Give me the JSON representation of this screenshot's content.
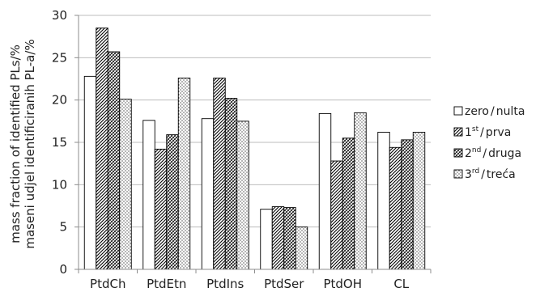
{
  "chart_data": {
    "type": "bar",
    "categories": [
      "PtdCh",
      "PtdEtn",
      "PtdIns",
      "PtdSer",
      "PtdOH",
      "CL"
    ],
    "series": [
      {
        "name_main": "zero",
        "name_sep": "/",
        "name_alt": "nulta",
        "values": [
          22.8,
          17.6,
          17.8,
          7.1,
          18.4,
          16.2
        ]
      },
      {
        "name_main": "1",
        "name_sup": "st",
        "name_sep": "/",
        "name_alt": "prva",
        "values": [
          28.5,
          14.2,
          22.6,
          7.4,
          12.8,
          14.4
        ]
      },
      {
        "name_main": "2",
        "name_sup": "nd",
        "name_sep": "/",
        "name_alt": "druga",
        "values": [
          25.7,
          15.9,
          20.2,
          7.3,
          15.5,
          15.3
        ]
      },
      {
        "name_main": "3",
        "name_sup": "rd",
        "name_sep": "/",
        "name_alt": "treća",
        "values": [
          20.1,
          22.6,
          17.5,
          5.0,
          18.5,
          16.2
        ]
      }
    ],
    "ylabel_line1": "mass fraction of identified PLs/%",
    "ylabel_line2": "maseni udjel identificiranih PL-a/%",
    "ylim": [
      0,
      30
    ],
    "yticks": [
      "0",
      "5",
      "10",
      "15",
      "20",
      "25",
      "30"
    ],
    "grid": true,
    "legend_position": "right"
  }
}
